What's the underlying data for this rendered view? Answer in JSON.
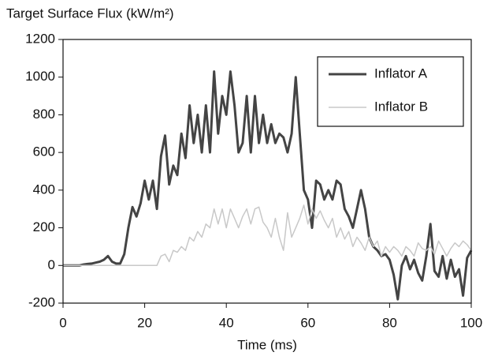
{
  "chart_data": {
    "type": "line",
    "ylabel": "Target Surface Flux (kW/m²)",
    "xlabel": "Time (ms)",
    "x": [
      0,
      1,
      2,
      3,
      4,
      5,
      6,
      7,
      8,
      9,
      10,
      11,
      12,
      13,
      14,
      15,
      16,
      17,
      18,
      19,
      20,
      21,
      22,
      23,
      24,
      25,
      26,
      27,
      28,
      29,
      30,
      31,
      32,
      33,
      34,
      35,
      36,
      37,
      38,
      39,
      40,
      41,
      42,
      43,
      44,
      45,
      46,
      47,
      48,
      49,
      50,
      51,
      52,
      53,
      54,
      55,
      56,
      57,
      58,
      59,
      60,
      61,
      62,
      63,
      64,
      65,
      66,
      67,
      68,
      69,
      70,
      71,
      72,
      73,
      74,
      75,
      76,
      77,
      78,
      79,
      80,
      81,
      82,
      83,
      84,
      85,
      86,
      87,
      88,
      89,
      90,
      91,
      92,
      93,
      94,
      95,
      96,
      97,
      98,
      99,
      100
    ],
    "series": [
      {
        "name": "Inflator A",
        "color": "#444444",
        "values": [
          0,
          0,
          0,
          0,
          0,
          5,
          8,
          10,
          15,
          20,
          30,
          50,
          20,
          10,
          10,
          60,
          200,
          310,
          260,
          330,
          450,
          350,
          450,
          300,
          580,
          690,
          430,
          530,
          480,
          700,
          570,
          850,
          650,
          800,
          600,
          850,
          600,
          1030,
          700,
          900,
          800,
          1030,
          850,
          600,
          650,
          900,
          600,
          900,
          650,
          800,
          650,
          750,
          650,
          700,
          680,
          600,
          700,
          1000,
          700,
          400,
          350,
          200,
          450,
          430,
          350,
          400,
          350,
          450,
          430,
          300,
          260,
          200,
          300,
          400,
          300,
          150,
          100,
          80,
          50,
          60,
          30,
          -50,
          -180,
          0,
          50,
          -20,
          30,
          -40,
          -80,
          50,
          220,
          -30,
          -60,
          50,
          -70,
          30,
          -60,
          -20,
          -160,
          40,
          80
        ]
      },
      {
        "name": "Inflator B",
        "color": "#c8c8c8",
        "values": [
          0,
          0,
          0,
          0,
          0,
          0,
          0,
          0,
          0,
          0,
          0,
          0,
          0,
          0,
          0,
          0,
          0,
          0,
          0,
          0,
          0,
          0,
          0,
          0,
          50,
          60,
          20,
          80,
          70,
          100,
          80,
          150,
          130,
          180,
          150,
          220,
          200,
          300,
          220,
          300,
          200,
          300,
          250,
          200,
          260,
          300,
          220,
          300,
          310,
          230,
          200,
          150,
          250,
          150,
          80,
          280,
          150,
          200,
          250,
          320,
          220,
          300,
          250,
          290,
          240,
          200,
          250,
          150,
          200,
          140,
          180,
          100,
          150,
          120,
          80,
          150,
          100,
          130,
          50,
          100,
          70,
          100,
          80,
          50,
          100,
          80,
          50,
          120,
          90,
          80,
          100,
          60,
          130,
          90,
          50,
          90,
          120,
          100,
          130,
          110,
          80
        ]
      }
    ],
    "xlim": [
      0,
      100
    ],
    "xticks": [
      0,
      20,
      40,
      60,
      80,
      100
    ],
    "ylim": [
      -200,
      1200
    ],
    "yticks": [
      -200,
      0,
      200,
      400,
      600,
      800,
      1000,
      1200
    ],
    "legend": "upper right"
  }
}
